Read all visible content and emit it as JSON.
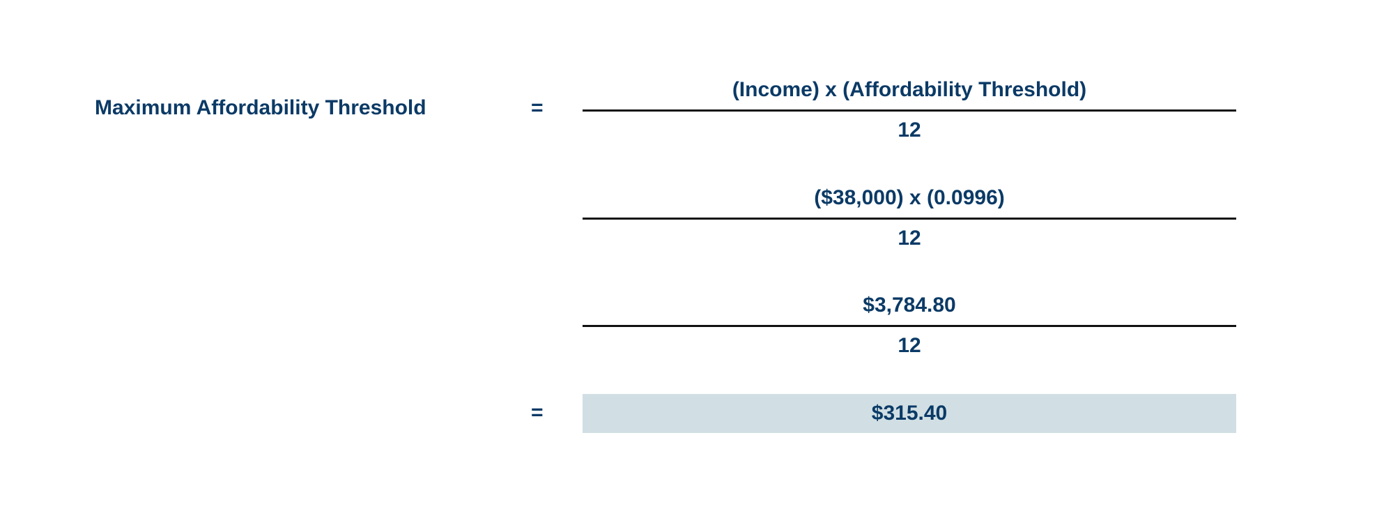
{
  "formula": {
    "label": "Maximum Affordability Threshold",
    "equals_symbol": "=",
    "steps": [
      {
        "numerator": "(Income) x (Affordability Threshold)",
        "denominator": "12"
      },
      {
        "numerator": "($38,000) x (0.0996)",
        "denominator": "12"
      },
      {
        "numerator": "$3,784.80",
        "denominator": "12"
      }
    ],
    "result": "$315.40"
  },
  "colors": {
    "text": "#0b3a66",
    "fraction_bar": "#111111",
    "result_background": "#d1dfe4"
  }
}
